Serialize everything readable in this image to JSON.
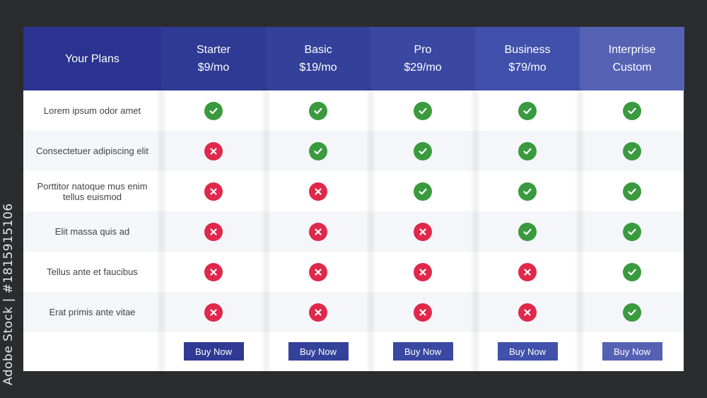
{
  "watermark": "Adobe Stock | #1815915106",
  "header": {
    "title": "Your Plans",
    "plans": [
      {
        "name": "Starter",
        "price": "$9/mo",
        "color": "#2f3a94"
      },
      {
        "name": "Basic",
        "price": "$19/mo",
        "color": "#33419a"
      },
      {
        "name": "Pro",
        "price": "$29/mo",
        "color": "#3a48a2"
      },
      {
        "name": "Business",
        "price": "$79/mo",
        "color": "#4150aa"
      },
      {
        "name": "Interprise",
        "price": "Custom",
        "color": "#5562b4"
      }
    ],
    "title_color": "#2a3490"
  },
  "features": [
    {
      "label": "Lorem ipsum odor amet",
      "marks": [
        true,
        true,
        true,
        true,
        true
      ]
    },
    {
      "label": "Consectetuer adipiscing elit",
      "marks": [
        false,
        true,
        true,
        true,
        true
      ]
    },
    {
      "label": "Porttitor natoque mus enim tellus euismod",
      "marks": [
        false,
        false,
        true,
        true,
        true
      ]
    },
    {
      "label": "Elit massa quis ad",
      "marks": [
        false,
        false,
        false,
        true,
        true
      ]
    },
    {
      "label": "Tellus ante et faucibus",
      "marks": [
        false,
        false,
        false,
        false,
        true
      ]
    },
    {
      "label": "Erat primis ante vitae",
      "marks": [
        false,
        false,
        false,
        false,
        true
      ]
    }
  ],
  "buy_label": "Buy Now",
  "colors": {
    "check": "#3a9a3e",
    "cross": "#e0284b",
    "row_alt": "#f5f6f9"
  }
}
